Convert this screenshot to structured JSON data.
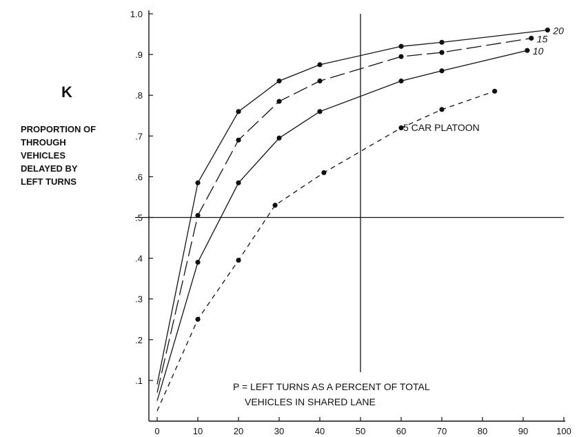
{
  "chart_data": {
    "type": "line",
    "title": "",
    "y_heading": "K",
    "ylabel_lines": [
      "PROPORTION OF",
      "THROUGH",
      "VEHICLES",
      "DELAYED BY",
      "LEFT TURNS"
    ],
    "xlabel_lines": [
      "P = LEFT TURNS AS A PERCENT OF TOTAL",
      "VEHICLES IN SHARED LANE"
    ],
    "annotation": "5 CAR PLATOON",
    "xlim": [
      0,
      100
    ],
    "ylim": [
      0,
      1.0
    ],
    "x_ticks": [
      "0",
      "10",
      "20",
      "30",
      "40",
      "50",
      "60",
      "70",
      "80",
      "90",
      "100"
    ],
    "y_ticks": [
      ".1",
      ".2",
      ".3",
      ".4",
      ".5",
      ".6",
      ".7",
      ".8",
      ".9",
      "1.0"
    ],
    "reference_lines": {
      "x": 50,
      "y": 0.5
    },
    "series": [
      {
        "name": "20",
        "dash": "solid",
        "line_start": [
          0,
          0.09
        ],
        "x": [
          10,
          20,
          30,
          40,
          60,
          70,
          96
        ],
        "y": [
          0.585,
          0.76,
          0.835,
          0.875,
          0.92,
          0.93,
          0.96
        ]
      },
      {
        "name": "15",
        "dash": "long-dash",
        "line_start": [
          0,
          0.07
        ],
        "x": [
          10,
          20,
          30,
          40,
          60,
          70,
          92
        ],
        "y": [
          0.505,
          0.69,
          0.785,
          0.835,
          0.895,
          0.905,
          0.94
        ]
      },
      {
        "name": "10",
        "dash": "solid",
        "line_start": [
          0,
          0.05
        ],
        "x": [
          10,
          20,
          30,
          40,
          60,
          70,
          91
        ],
        "y": [
          0.39,
          0.585,
          0.695,
          0.76,
          0.835,
          0.86,
          0.91
        ]
      },
      {
        "name": "",
        "dash": "short-dash",
        "line_start": [
          0,
          0.025
        ],
        "x": [
          10,
          20,
          29,
          41,
          60,
          70,
          83
        ],
        "y": [
          0.25,
          0.395,
          0.53,
          0.61,
          0.72,
          0.765,
          0.81
        ]
      }
    ]
  }
}
